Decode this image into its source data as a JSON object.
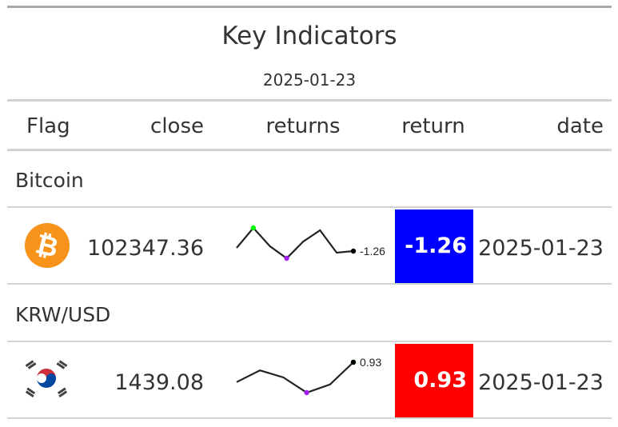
{
  "title": "Key Indicators",
  "subtitle": "2025-01-23",
  "columns": {
    "flag": "Flag",
    "close": "close",
    "returns": "returns",
    "return": "return",
    "date": "date"
  },
  "colors": {
    "negative": "#0000ff",
    "positive": "#ff0000",
    "spark_max": "#00ff00",
    "spark_min": "#a020f0"
  },
  "rows": [
    {
      "group": "Bitcoin",
      "icon": "bitcoin-icon",
      "close": "102347.36",
      "spark_values": [
        104.0,
        106.5,
        104.2,
        102.7,
        104.8,
        106.2,
        103.4,
        103.6
      ],
      "spark_label": "-1.26",
      "return": "-1.26",
      "return_color": "#0000ff",
      "date": "2025-01-23"
    },
    {
      "group": "KRW/USD",
      "icon": "south-korea-flag-icon",
      "close": "1439.08",
      "spark_values": [
        1450.0,
        1452.0,
        1450.8,
        1448.2,
        1449.6,
        1453.4
      ],
      "spark_label": "0.93",
      "return": "0.93",
      "return_color": "#ff0000",
      "date": "2025-01-23"
    }
  ]
}
